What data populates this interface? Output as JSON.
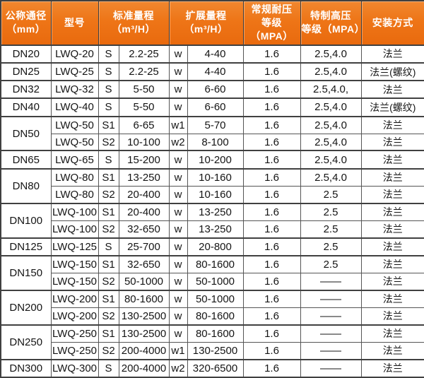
{
  "colors": {
    "header_bg": "#ee7517",
    "header_bg_light": "#f0872f",
    "header_text": "#ffffff",
    "grid_border": "#4a4a4a",
    "body_text": "#141414",
    "body_bg": "#ffffff"
  },
  "table": {
    "headers": [
      {
        "line1": "公称通径",
        "line2": "（mm）",
        "colspan": 1
      },
      {
        "line1": "型号",
        "line2": "",
        "colspan": 1
      },
      {
        "line1": "标准量程",
        "line2": "（m³/H）",
        "colspan": 2
      },
      {
        "line1": "扩展量程",
        "line2": "（m³/H）",
        "colspan": 2
      },
      {
        "line1": "常规耐压",
        "line2": "等级（MPA）",
        "colspan": 1
      },
      {
        "line1": "特制高压",
        "line2": "等级（MPA）",
        "colspan": 1
      },
      {
        "line1": "安装方式",
        "line2": "",
        "colspan": 1
      }
    ],
    "rows": [
      {
        "dn": "DN20",
        "rowspan": 1,
        "model": "LWQ-20",
        "s_class": "S",
        "std_range": "2.2-25",
        "w_class": "w",
        "ext_range": "4-40",
        "pressure": "1.6",
        "high_pressure": "2.5,4.0",
        "mount": "法兰"
      },
      {
        "dn": "DN25",
        "rowspan": 1,
        "model": "LWQ-25",
        "s_class": "S",
        "std_range": "2.2-25",
        "w_class": "w",
        "ext_range": "4-40",
        "pressure": "1.6",
        "high_pressure": "2.5,4.0",
        "mount": "法兰(螺纹)"
      },
      {
        "dn": "DN32",
        "rowspan": 1,
        "model": "LWQ-32",
        "s_class": "S",
        "std_range": "5-50",
        "w_class": "w",
        "ext_range": "6-60",
        "pressure": "1.6",
        "high_pressure": "2.5,4.0,",
        "mount": "法兰"
      },
      {
        "dn": "DN40",
        "rowspan": 1,
        "model": "LWQ-40",
        "s_class": "S",
        "std_range": "5-50",
        "w_class": "w",
        "ext_range": "6-60",
        "pressure": "1.6",
        "high_pressure": "2.5,4.0",
        "mount": "法兰(螺纹)"
      },
      {
        "dn": "DN50",
        "rowspan": 2,
        "model": "LWQ-50",
        "s_class": "S1",
        "std_range": "6-65",
        "w_class": "w1",
        "ext_range": "5-70",
        "pressure": "1.6",
        "high_pressure": "2.5,4.0",
        "mount": "法兰"
      },
      {
        "dn": null,
        "model": "LWQ-50",
        "s_class": "S2",
        "std_range": "10-100",
        "w_class": "w2",
        "ext_range": "8-100",
        "pressure": "1.6",
        "high_pressure": "2.5,4.0",
        "mount": "法兰"
      },
      {
        "dn": "DN65",
        "rowspan": 1,
        "model": "LWQ-65",
        "s_class": "S",
        "std_range": "15-200",
        "w_class": "w",
        "ext_range": "10-200",
        "pressure": "1.6",
        "high_pressure": "2.5,4.0",
        "mount": "法兰"
      },
      {
        "dn": "DN80",
        "rowspan": 2,
        "model": "LWQ-80",
        "s_class": "S1",
        "std_range": "13-250",
        "w_class": "w",
        "ext_range": "10-160",
        "pressure": "1.6",
        "high_pressure": "2.5,4.0",
        "mount": "法兰"
      },
      {
        "dn": null,
        "model": "LWQ-80",
        "s_class": "S2",
        "std_range": "20-400",
        "w_class": "w",
        "ext_range": "10-160",
        "pressure": "1.6",
        "high_pressure": "2.5",
        "mount": "法兰"
      },
      {
        "dn": "DN100",
        "rowspan": 2,
        "model": "LWQ-100",
        "s_class": "S1",
        "std_range": "20-400",
        "w_class": "w",
        "ext_range": "13-250",
        "pressure": "1.6",
        "high_pressure": "2.5",
        "mount": "法兰"
      },
      {
        "dn": null,
        "model": "LWQ-100",
        "s_class": "S2",
        "std_range": "32-650",
        "w_class": "w",
        "ext_range": "13-250",
        "pressure": "1.6",
        "high_pressure": "2.5",
        "mount": "法兰"
      },
      {
        "dn": "DN125",
        "rowspan": 1,
        "model": "LWQ-125",
        "s_class": "S",
        "std_range": "25-700",
        "w_class": "w",
        "ext_range": "20-800",
        "pressure": "1.6",
        "high_pressure": "2.5",
        "mount": "法兰"
      },
      {
        "dn": "DN150",
        "rowspan": 2,
        "model": "LWQ-150",
        "s_class": "S1",
        "std_range": "32-650",
        "w_class": "w",
        "ext_range": "80-1600",
        "pressure": "1.6",
        "high_pressure": "2.5",
        "mount": "法兰"
      },
      {
        "dn": null,
        "model": "LWQ-150",
        "s_class": "S2",
        "std_range": "50-1000",
        "w_class": "w",
        "ext_range": "50-1000",
        "pressure": "1.6",
        "high_pressure": "——",
        "mount": "法兰"
      },
      {
        "dn": "DN200",
        "rowspan": 2,
        "model": "LWQ-200",
        "s_class": "S1",
        "std_range": "80-1600",
        "w_class": "w",
        "ext_range": "50-1000",
        "pressure": "1.6",
        "high_pressure": "——",
        "mount": "法兰"
      },
      {
        "dn": null,
        "model": "LWQ-200",
        "s_class": "S2",
        "std_range": "130-2500",
        "w_class": "w",
        "ext_range": "80-1600",
        "pressure": "1.6",
        "high_pressure": "——",
        "mount": "法兰"
      },
      {
        "dn": "DN250",
        "rowspan": 2,
        "model": "LWQ-250",
        "s_class": "S1",
        "std_range": "130-2500",
        "w_class": "w",
        "ext_range": "80-1600",
        "pressure": "1.6",
        "high_pressure": "——",
        "mount": "法兰"
      },
      {
        "dn": null,
        "model": "LWQ-250",
        "s_class": "S2",
        "std_range": "200-4000",
        "w_class": "w1",
        "ext_range": "130-2500",
        "pressure": "1.6",
        "high_pressure": "——",
        "mount": "法兰"
      },
      {
        "dn": "DN300",
        "rowspan": 1,
        "model": "LWQ-300",
        "s_class": "S",
        "std_range": "200-4000",
        "w_class": "w2",
        "ext_range": "320-6500",
        "pressure": "1.6",
        "high_pressure": "——",
        "mount": "法兰"
      }
    ]
  }
}
